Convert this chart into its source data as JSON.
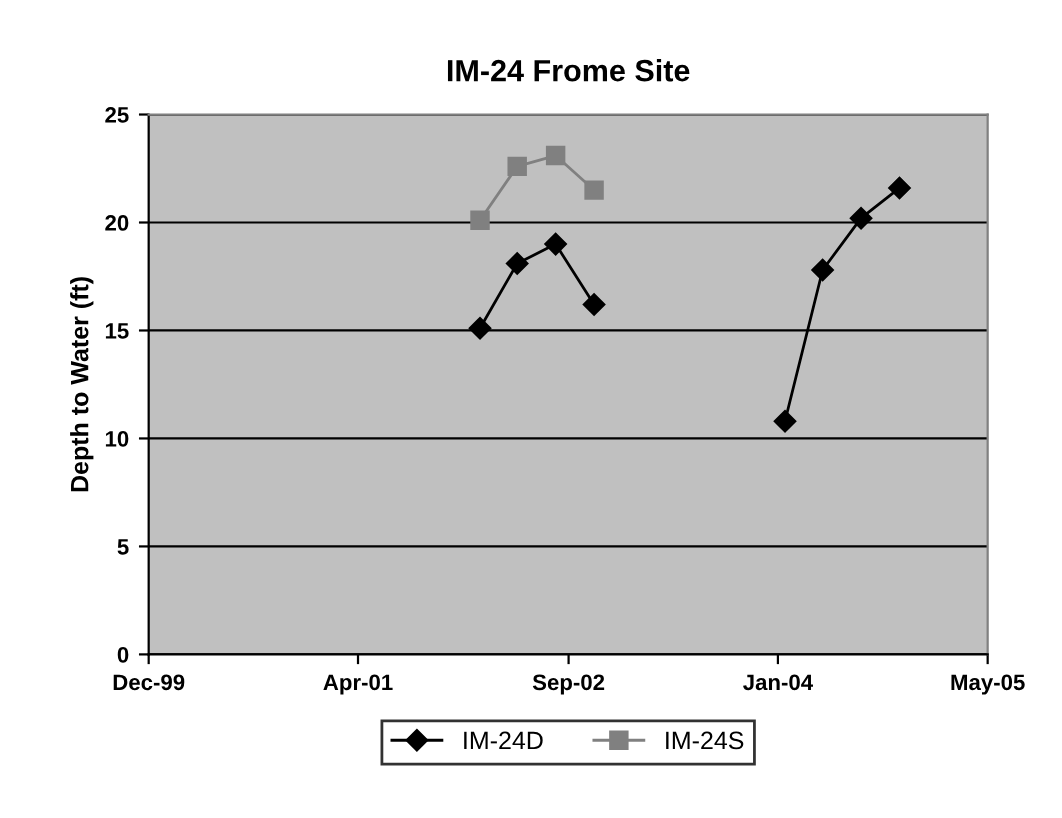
{
  "chart_data": {
    "type": "line",
    "title": "IM-24 Frome Site",
    "ylabel": "Depth to Water (ft)",
    "x": [
      "2002-02",
      "2002-05",
      "2002-08",
      "2002-11",
      "2003-06",
      "2004-02",
      "2004-05",
      "2004-08",
      "2004-11"
    ],
    "series": [
      {
        "name": "IM-24D",
        "color": "#000000",
        "marker": "diamond",
        "values": [
          15.1,
          18.1,
          19.0,
          16.2,
          null,
          10.8,
          17.8,
          20.2,
          21.6
        ]
      },
      {
        "name": "IM-24S",
        "color": "#808080",
        "marker": "square",
        "x": [
          "2002-02",
          "2002-05",
          "2002-08",
          "2002-11"
        ],
        "values": [
          20.1,
          22.6,
          23.1,
          21.5
        ]
      }
    ],
    "xlim": [
      "1999-12-01",
      "2005-05-31"
    ],
    "xticks": [
      {
        "value": "1999-12-01",
        "label": "Dec-99"
      },
      {
        "value": "2001-04-15",
        "label": "Apr-01"
      },
      {
        "value": "2002-09-01",
        "label": "Sep-02"
      },
      {
        "value": "2004-01-15",
        "label": "Jan-04"
      },
      {
        "value": "2005-05-31",
        "label": "May-05"
      }
    ],
    "ylim": [
      0,
      25
    ],
    "yticks": [
      0,
      5,
      10,
      15,
      20,
      25
    ],
    "grid": "y",
    "legend": "bottom",
    "line_style": "solid"
  }
}
